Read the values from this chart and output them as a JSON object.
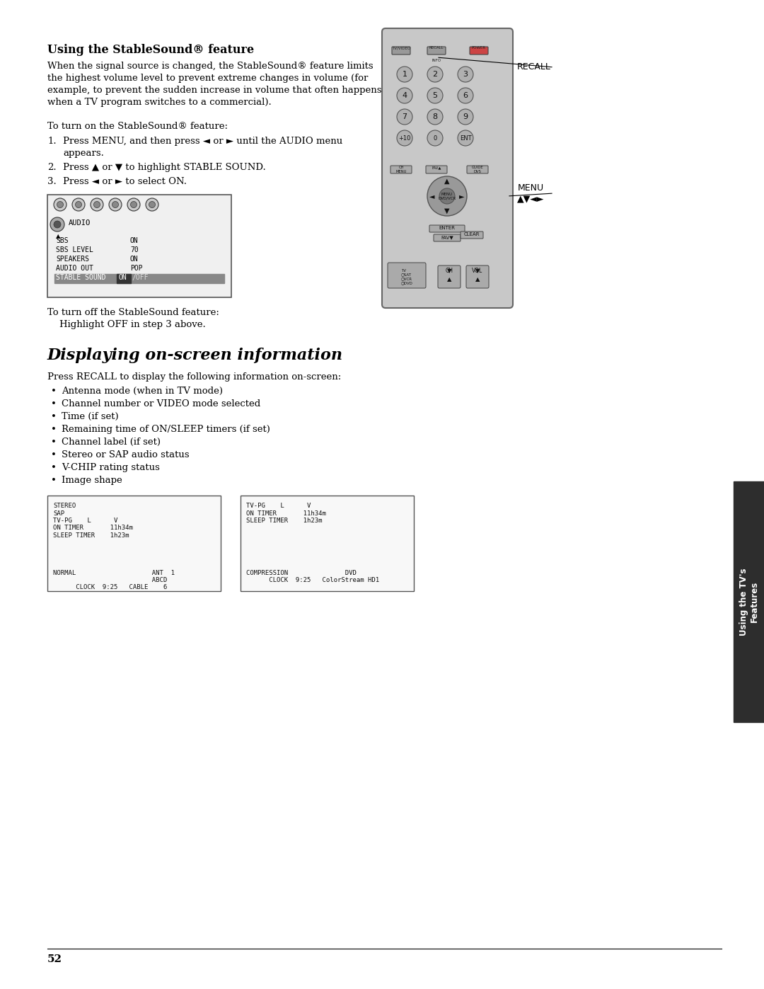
{
  "page_bg": "#ffffff",
  "page_number": "52",
  "sidebar_bg": "#2d2d2d",
  "sidebar_text": "Using the TV's\nFeatures",
  "sidebar_text_color": "#ffffff",
  "section1_title": "Using the StableSound® feature",
  "section1_body": [
    "When the signal source is changed, the StableSound® feature limits",
    "the highest volume level to prevent extreme changes in volume (for",
    "example, to prevent the sudden increase in volume that often happens",
    "when a TV program switches to a commercial).",
    "",
    "To turn on the StableSound® feature:"
  ],
  "section1_steps": [
    "Press MENU, and then press ◄ or ► until the AUDIO menu\nappears.",
    "Press ▲ or ▼ to highlight STABLE SOUND.",
    "Press ◄ or ► to select ON."
  ],
  "section1_note": [
    "To turn off the StableSound feature:",
    "    Highlight OFF in step 3 above."
  ],
  "section2_title": "Displaying on-screen information",
  "section2_intro": "Press RECALL to display the following information on-screen:",
  "section2_bullets": [
    "Antenna mode (when in TV mode)",
    "Channel number or VIDEO mode selected",
    "Time (if set)",
    "Remaining time of ON/SLEEP timers (if set)",
    "Channel label (if set)",
    "Stereo or SAP audio status",
    "V-CHIP rating status",
    "Image shape"
  ],
  "screen1_lines": [
    "STEREO",
    "SAP",
    "TV-PG    L      V",
    "ON TIMER       11h34m",
    "SLEEP TIMER    1h23m",
    "",
    "",
    "",
    "",
    "NORMAL                    ANT  1",
    "                          ABCD",
    "      CLOCK  9:25   CABLE    6"
  ],
  "screen2_lines": [
    "TV-PG    L      V",
    "ON TIMER       11h34m",
    "SLEEP TIMER    1h23m",
    "",
    "",
    "",
    "",
    "",
    "",
    "COMPRESSION               DVD",
    "      CLOCK  9:25   ColorStream HD1"
  ],
  "recall_label": "RECALL",
  "menu_label": "MENU\n▲▼◄►"
}
